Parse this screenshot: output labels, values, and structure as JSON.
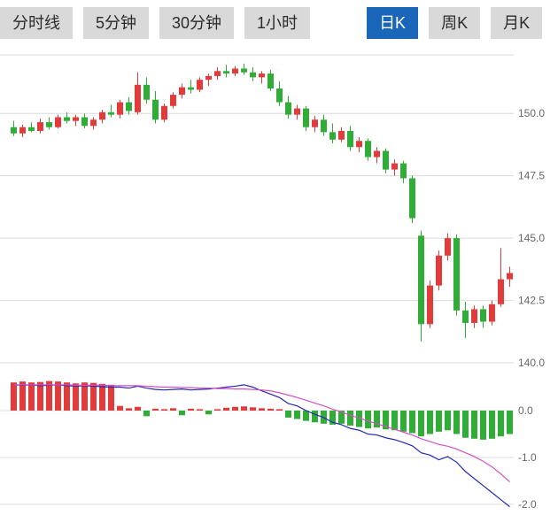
{
  "toolbar": {
    "tabs": [
      {
        "label": "分时线",
        "active": false
      },
      {
        "label": "5分钟",
        "active": false
      },
      {
        "label": "30分钟",
        "active": false
      },
      {
        "label": "1小时",
        "active": false
      },
      {
        "label": "日K",
        "active": true
      },
      {
        "label": "周K",
        "active": false
      },
      {
        "label": "月K",
        "active": false
      }
    ]
  },
  "chart_data": {
    "type": "candlestick",
    "title": "",
    "colors": {
      "up": "#e23b3b",
      "down": "#30ad36",
      "dif": "#2328b5",
      "dea": "#d44fc4",
      "grid": "#dcdcdc",
      "label": "#666666",
      "active_tab": "#1a66b8"
    },
    "price": {
      "ymax": 152.35,
      "ymin": 140.0,
      "grid": [
        150.0,
        147.5,
        145.0,
        142.5,
        140.0
      ],
      "candles": [
        [
          149.45,
          149.7,
          149.1,
          149.2
        ],
        [
          149.2,
          149.55,
          149.05,
          149.45
        ],
        [
          149.45,
          149.65,
          149.25,
          149.3
        ],
        [
          149.3,
          149.8,
          149.2,
          149.65
        ],
        [
          149.65,
          149.85,
          149.35,
          149.45
        ],
        [
          149.45,
          149.95,
          149.4,
          149.85
        ],
        [
          149.85,
          150.05,
          149.6,
          149.7
        ],
        [
          149.7,
          149.95,
          149.5,
          149.85
        ],
        [
          149.85,
          150.0,
          149.4,
          149.5
        ],
        [
          149.5,
          149.85,
          149.35,
          149.75
        ],
        [
          149.75,
          150.15,
          149.6,
          150.05
        ],
        [
          150.05,
          150.35,
          149.85,
          149.95
        ],
        [
          149.95,
          150.55,
          149.8,
          150.45
        ],
        [
          150.45,
          150.65,
          149.95,
          150.1
        ],
        [
          150.05,
          151.65,
          149.95,
          151.15
        ],
        [
          151.15,
          151.45,
          150.4,
          150.55
        ],
        [
          150.55,
          150.9,
          149.6,
          149.75
        ],
        [
          149.75,
          150.4,
          149.65,
          150.3
        ],
        [
          150.3,
          150.85,
          150.2,
          150.75
        ],
        [
          150.75,
          151.2,
          150.6,
          151.05
        ],
        [
          151.05,
          151.35,
          150.8,
          150.95
        ],
        [
          150.95,
          151.45,
          150.85,
          151.35
        ],
        [
          151.35,
          151.6,
          151.1,
          151.5
        ],
        [
          151.5,
          151.85,
          151.35,
          151.7
        ],
        [
          151.7,
          151.95,
          151.45,
          151.6
        ],
        [
          151.6,
          151.9,
          151.5,
          151.8
        ],
        [
          151.8,
          152.0,
          151.55,
          151.65
        ],
        [
          151.65,
          151.85,
          151.3,
          151.45
        ],
        [
          151.45,
          151.7,
          151.2,
          151.6
        ],
        [
          151.6,
          151.75,
          150.9,
          151.0
        ],
        [
          151.0,
          151.3,
          150.3,
          150.45
        ],
        [
          150.45,
          150.7,
          149.8,
          149.95
        ],
        [
          149.95,
          150.35,
          149.75,
          150.2
        ],
        [
          150.2,
          150.3,
          149.3,
          149.45
        ],
        [
          149.45,
          149.9,
          149.25,
          149.75
        ],
        [
          149.75,
          149.95,
          149.1,
          149.25
        ],
        [
          149.25,
          149.6,
          148.8,
          148.95
        ],
        [
          148.95,
          149.45,
          148.85,
          149.3
        ],
        [
          149.3,
          149.5,
          148.5,
          148.65
        ],
        [
          148.65,
          149.05,
          148.45,
          148.9
        ],
        [
          148.9,
          149.0,
          148.1,
          148.25
        ],
        [
          148.25,
          148.65,
          148.0,
          148.5
        ],
        [
          148.5,
          148.6,
          147.6,
          147.75
        ],
        [
          147.75,
          148.15,
          147.5,
          148.0
        ],
        [
          148.0,
          148.1,
          147.2,
          147.4
        ],
        [
          147.4,
          147.5,
          145.6,
          145.8
        ],
        [
          145.1,
          145.3,
          140.85,
          141.55
        ],
        [
          141.55,
          143.3,
          141.4,
          143.1
        ],
        [
          143.1,
          144.5,
          142.9,
          144.3
        ],
        [
          144.3,
          145.2,
          144.1,
          145.0
        ],
        [
          145.0,
          145.15,
          141.9,
          142.1
        ],
        [
          142.1,
          142.45,
          141.0,
          141.6
        ],
        [
          141.6,
          142.3,
          141.4,
          142.15
        ],
        [
          142.15,
          142.3,
          141.4,
          141.65
        ],
        [
          141.65,
          142.5,
          141.5,
          142.35
        ],
        [
          142.35,
          144.6,
          142.25,
          143.35
        ],
        [
          143.35,
          143.85,
          143.05,
          143.6
        ]
      ]
    },
    "macd": {
      "ymax": 0.75,
      "ymin": -2.2,
      "grid": [
        0.0,
        -1.0,
        -2.0
      ],
      "histogram": [
        0.6,
        0.62,
        0.6,
        0.61,
        0.63,
        0.62,
        0.6,
        0.58,
        0.6,
        0.59,
        0.57,
        0.55,
        0.1,
        0.05,
        0.08,
        -0.12,
        0.04,
        0.03,
        0.05,
        -0.1,
        0.04,
        0.03,
        -0.08,
        0.03,
        0.06,
        0.08,
        0.09,
        0.07,
        0.05,
        0.04,
        0.03,
        -0.15,
        -0.18,
        -0.22,
        -0.25,
        -0.28,
        -0.3,
        -0.28,
        -0.32,
        -0.35,
        -0.38,
        -0.36,
        -0.4,
        -0.42,
        -0.45,
        -0.48,
        -0.55,
        -0.5,
        -0.45,
        -0.42,
        -0.5,
        -0.58,
        -0.6,
        -0.62,
        -0.6,
        -0.55,
        -0.5
      ],
      "dif": [
        0.55,
        0.54,
        0.55,
        0.53,
        0.54,
        0.55,
        0.53,
        0.52,
        0.53,
        0.52,
        0.51,
        0.5,
        0.5,
        0.48,
        0.52,
        0.48,
        0.45,
        0.44,
        0.45,
        0.46,
        0.44,
        0.45,
        0.46,
        0.48,
        0.5,
        0.52,
        0.55,
        0.5,
        0.42,
        0.35,
        0.28,
        0.15,
        0.1,
        0.0,
        -0.08,
        -0.15,
        -0.25,
        -0.3,
        -0.38,
        -0.42,
        -0.5,
        -0.52,
        -0.58,
        -0.62,
        -0.68,
        -0.75,
        -0.9,
        -0.95,
        -1.05,
        -0.98,
        -1.1,
        -1.3,
        -1.45,
        -1.6,
        -1.75,
        -1.9,
        -2.05
      ],
      "dea": [
        0.55,
        0.55,
        0.55,
        0.55,
        0.55,
        0.55,
        0.55,
        0.54,
        0.54,
        0.54,
        0.54,
        0.53,
        0.53,
        0.53,
        0.53,
        0.52,
        0.51,
        0.5,
        0.5,
        0.49,
        0.49,
        0.48,
        0.48,
        0.47,
        0.47,
        0.46,
        0.46,
        0.45,
        0.44,
        0.42,
        0.38,
        0.33,
        0.28,
        0.22,
        0.16,
        0.1,
        0.03,
        -0.03,
        -0.1,
        -0.16,
        -0.22,
        -0.28,
        -0.34,
        -0.4,
        -0.46,
        -0.52,
        -0.6,
        -0.66,
        -0.72,
        -0.76,
        -0.82,
        -0.9,
        -0.98,
        -1.08,
        -1.2,
        -1.35,
        -1.52
      ]
    }
  }
}
